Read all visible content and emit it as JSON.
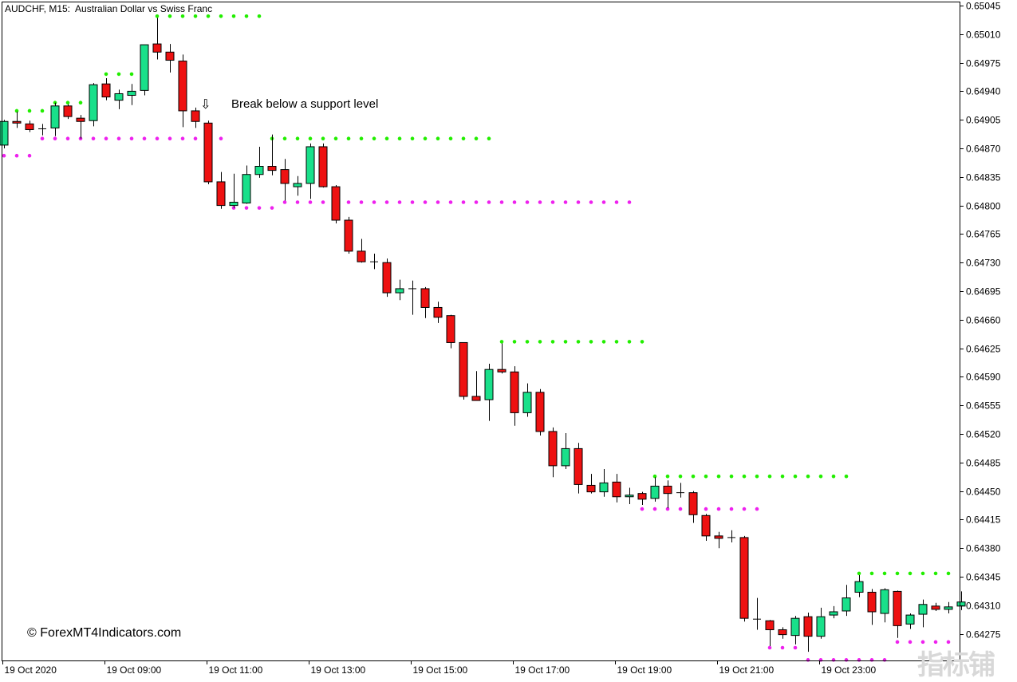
{
  "header": {
    "title": "AUDCHF, M15:  Australian Dollar vs Swiss Franc"
  },
  "annotation": {
    "text": "Break below a support level",
    "arrow_icon": "down-arrow-icon"
  },
  "footer": {
    "copyright": "© ForexMT4Indicators.com",
    "watermark": "指标铺"
  },
  "colors": {
    "bull": "#19e08a",
    "bear": "#ee1111",
    "resistance": "#22ee00",
    "support": "#ee22ee",
    "axis": "#000000"
  },
  "chart_data": {
    "type": "candlestick",
    "symbol": "AUDCHF",
    "timeframe": "M15",
    "ylim": [
      0.64248,
      0.65045
    ],
    "y_ticks": [
      "0.65045",
      "0.65010",
      "0.64975",
      "0.64940",
      "0.64905",
      "0.64870",
      "0.64835",
      "0.64800",
      "0.64765",
      "0.64730",
      "0.64695",
      "0.64660",
      "0.64625",
      "0.64590",
      "0.64555",
      "0.64520",
      "0.64485",
      "0.64450",
      "0.64415",
      "0.64380",
      "0.64345",
      "0.64310",
      "0.64275"
    ],
    "x_ticks": [
      {
        "index": 0,
        "label": "19 Oct 2020"
      },
      {
        "index": 8,
        "label": "19 Oct 09:00"
      },
      {
        "index": 16,
        "label": "19 Oct 11:00"
      },
      {
        "index": 24,
        "label": "19 Oct 13:00"
      },
      {
        "index": 32,
        "label": "19 Oct 15:00"
      },
      {
        "index": 40,
        "label": "19 Oct 17:00"
      },
      {
        "index": 48,
        "label": "19 Oct 19:00"
      },
      {
        "index": 56,
        "label": "19 Oct 21:00"
      },
      {
        "index": 64,
        "label": "19 Oct 23:00"
      }
    ],
    "candles": [
      {
        "o": 0.64874,
        "h": 0.64905,
        "l": 0.6487,
        "c": 0.64903
      },
      {
        "o": 0.64903,
        "h": 0.64915,
        "l": 0.64895,
        "c": 0.64901
      },
      {
        "o": 0.649,
        "h": 0.64904,
        "l": 0.6489,
        "c": 0.64893
      },
      {
        "o": 0.64893,
        "h": 0.649,
        "l": 0.64886,
        "c": 0.64894
      },
      {
        "o": 0.64895,
        "h": 0.64926,
        "l": 0.64885,
        "c": 0.64922
      },
      {
        "o": 0.64922,
        "h": 0.64924,
        "l": 0.64906,
        "c": 0.64909
      },
      {
        "o": 0.64907,
        "h": 0.64911,
        "l": 0.64882,
        "c": 0.64903
      },
      {
        "o": 0.64904,
        "h": 0.6495,
        "l": 0.64897,
        "c": 0.64948
      },
      {
        "o": 0.64949,
        "h": 0.64956,
        "l": 0.64929,
        "c": 0.64933
      },
      {
        "o": 0.64929,
        "h": 0.64942,
        "l": 0.64918,
        "c": 0.64937
      },
      {
        "o": 0.64935,
        "h": 0.64949,
        "l": 0.64923,
        "c": 0.6494
      },
      {
        "o": 0.64941,
        "h": 0.64997,
        "l": 0.64935,
        "c": 0.64997
      },
      {
        "o": 0.64998,
        "h": 0.6503,
        "l": 0.64979,
        "c": 0.64988
      },
      {
        "o": 0.64988,
        "h": 0.64998,
        "l": 0.64963,
        "c": 0.64978
      },
      {
        "o": 0.64977,
        "h": 0.64985,
        "l": 0.64896,
        "c": 0.64916
      },
      {
        "o": 0.64916,
        "h": 0.6492,
        "l": 0.64895,
        "c": 0.64903
      },
      {
        "o": 0.64901,
        "h": 0.64904,
        "l": 0.64826,
        "c": 0.64829
      },
      {
        "o": 0.64829,
        "h": 0.64841,
        "l": 0.64796,
        "c": 0.648
      },
      {
        "o": 0.648,
        "h": 0.64839,
        "l": 0.64797,
        "c": 0.64804
      },
      {
        "o": 0.64803,
        "h": 0.64849,
        "l": 0.64802,
        "c": 0.64838
      },
      {
        "o": 0.64838,
        "h": 0.64872,
        "l": 0.64834,
        "c": 0.64848
      },
      {
        "o": 0.64848,
        "h": 0.64887,
        "l": 0.64837,
        "c": 0.64843
      },
      {
        "o": 0.64844,
        "h": 0.64857,
        "l": 0.64806,
        "c": 0.64827
      },
      {
        "o": 0.64823,
        "h": 0.64836,
        "l": 0.64812,
        "c": 0.64827
      },
      {
        "o": 0.64827,
        "h": 0.64876,
        "l": 0.64808,
        "c": 0.64872
      },
      {
        "o": 0.64872,
        "h": 0.64876,
        "l": 0.64822,
        "c": 0.64823
      },
      {
        "o": 0.64823,
        "h": 0.64825,
        "l": 0.64778,
        "c": 0.64782
      },
      {
        "o": 0.64782,
        "h": 0.64786,
        "l": 0.64741,
        "c": 0.64744
      },
      {
        "o": 0.64744,
        "h": 0.64759,
        "l": 0.6473,
        "c": 0.64731
      },
      {
        "o": 0.64731,
        "h": 0.64741,
        "l": 0.64722,
        "c": 0.6473
      },
      {
        "o": 0.6473,
        "h": 0.64735,
        "l": 0.64688,
        "c": 0.64693
      },
      {
        "o": 0.64693,
        "h": 0.64709,
        "l": 0.64684,
        "c": 0.64698
      },
      {
        "o": 0.64698,
        "h": 0.64708,
        "l": 0.64666,
        "c": 0.64697
      },
      {
        "o": 0.64698,
        "h": 0.647,
        "l": 0.64662,
        "c": 0.64675
      },
      {
        "o": 0.64675,
        "h": 0.64682,
        "l": 0.64656,
        "c": 0.64663
      },
      {
        "o": 0.64665,
        "h": 0.64666,
        "l": 0.64625,
        "c": 0.64632
      },
      {
        "o": 0.64632,
        "h": 0.64632,
        "l": 0.64562,
        "c": 0.64566
      },
      {
        "o": 0.64566,
        "h": 0.64597,
        "l": 0.64561,
        "c": 0.64561
      },
      {
        "o": 0.64562,
        "h": 0.64606,
        "l": 0.64536,
        "c": 0.64599
      },
      {
        "o": 0.64599,
        "h": 0.64631,
        "l": 0.64594,
        "c": 0.64596
      },
      {
        "o": 0.64596,
        "h": 0.64603,
        "l": 0.6453,
        "c": 0.64546
      },
      {
        "o": 0.64546,
        "h": 0.64582,
        "l": 0.64541,
        "c": 0.64571
      },
      {
        "o": 0.64571,
        "h": 0.64575,
        "l": 0.64518,
        "c": 0.64523
      },
      {
        "o": 0.64523,
        "h": 0.64528,
        "l": 0.64467,
        "c": 0.64481
      },
      {
        "o": 0.64481,
        "h": 0.64521,
        "l": 0.64477,
        "c": 0.64502
      },
      {
        "o": 0.64502,
        "h": 0.64509,
        "l": 0.64447,
        "c": 0.64458
      },
      {
        "o": 0.64457,
        "h": 0.64471,
        "l": 0.64447,
        "c": 0.64449
      },
      {
        "o": 0.64449,
        "h": 0.64477,
        "l": 0.64443,
        "c": 0.6446
      },
      {
        "o": 0.64461,
        "h": 0.64471,
        "l": 0.64436,
        "c": 0.64443
      },
      {
        "o": 0.64443,
        "h": 0.64454,
        "l": 0.64434,
        "c": 0.64445
      },
      {
        "o": 0.64447,
        "h": 0.64449,
        "l": 0.64433,
        "c": 0.6444
      },
      {
        "o": 0.64441,
        "h": 0.64467,
        "l": 0.64437,
        "c": 0.64456
      },
      {
        "o": 0.64456,
        "h": 0.64463,
        "l": 0.64429,
        "c": 0.64447
      },
      {
        "o": 0.64447,
        "h": 0.6446,
        "l": 0.64442,
        "c": 0.64448
      },
      {
        "o": 0.64448,
        "h": 0.6445,
        "l": 0.64411,
        "c": 0.64421
      },
      {
        "o": 0.6442,
        "h": 0.64422,
        "l": 0.64389,
        "c": 0.64395
      },
      {
        "o": 0.64395,
        "h": 0.644,
        "l": 0.6438,
        "c": 0.64392
      },
      {
        "o": 0.64392,
        "h": 0.64402,
        "l": 0.64387,
        "c": 0.64393
      },
      {
        "o": 0.64393,
        "h": 0.64395,
        "l": 0.6429,
        "c": 0.64294
      },
      {
        "o": 0.64292,
        "h": 0.64319,
        "l": 0.6428,
        "c": 0.64293
      },
      {
        "o": 0.64291,
        "h": 0.64292,
        "l": 0.6426,
        "c": 0.6428
      },
      {
        "o": 0.6428,
        "h": 0.64283,
        "l": 0.64269,
        "c": 0.64274
      },
      {
        "o": 0.64273,
        "h": 0.64297,
        "l": 0.64262,
        "c": 0.64294
      },
      {
        "o": 0.64296,
        "h": 0.64301,
        "l": 0.64253,
        "c": 0.64272
      },
      {
        "o": 0.64272,
        "h": 0.64307,
        "l": 0.64269,
        "c": 0.64296
      },
      {
        "o": 0.64298,
        "h": 0.64309,
        "l": 0.64294,
        "c": 0.64302
      },
      {
        "o": 0.64303,
        "h": 0.64335,
        "l": 0.64297,
        "c": 0.64319
      },
      {
        "o": 0.64326,
        "h": 0.64347,
        "l": 0.6432,
        "c": 0.64339
      },
      {
        "o": 0.64326,
        "h": 0.6433,
        "l": 0.64286,
        "c": 0.64302
      },
      {
        "o": 0.643,
        "h": 0.64331,
        "l": 0.64289,
        "c": 0.64329
      },
      {
        "o": 0.64327,
        "h": 0.64328,
        "l": 0.6427,
        "c": 0.64285
      },
      {
        "o": 0.64287,
        "h": 0.643,
        "l": 0.64281,
        "c": 0.64298
      },
      {
        "o": 0.64299,
        "h": 0.64317,
        "l": 0.64283,
        "c": 0.64311
      },
      {
        "o": 0.64309,
        "h": 0.64313,
        "l": 0.64303,
        "c": 0.64305
      },
      {
        "o": 0.64305,
        "h": 0.64314,
        "l": 0.643,
        "c": 0.64308
      },
      {
        "o": 0.64309,
        "h": 0.64327,
        "l": 0.64304,
        "c": 0.64314
      }
    ],
    "resistance_levels": [
      {
        "value": 0.64916,
        "from": 1,
        "to": 3
      },
      {
        "value": 0.64926,
        "from": 4,
        "to": 6
      },
      {
        "value": 0.64961,
        "from": 8,
        "to": 11
      },
      {
        "value": 0.65032,
        "from": 12,
        "to": 20
      },
      {
        "value": 0.64882,
        "from": 21,
        "to": 38
      },
      {
        "value": 0.64633,
        "from": 39,
        "to": 50
      },
      {
        "value": 0.64468,
        "from": 51,
        "to": 66
      },
      {
        "value": 0.64349,
        "from": 67,
        "to": 75
      }
    ],
    "support_levels": [
      {
        "value": 0.64861,
        "from": 0,
        "to": 2
      },
      {
        "value": 0.64882,
        "from": 3,
        "to": 17
      },
      {
        "value": 0.64797,
        "from": 18,
        "to": 21
      },
      {
        "value": 0.64804,
        "from": 22,
        "to": 49
      },
      {
        "value": 0.64428,
        "from": 50,
        "to": 59
      },
      {
        "value": 0.64258,
        "from": 60,
        "to": 62
      },
      {
        "value": 0.64243,
        "from": 63,
        "to": 69
      },
      {
        "value": 0.64265,
        "from": 70,
        "to": 75
      }
    ]
  }
}
